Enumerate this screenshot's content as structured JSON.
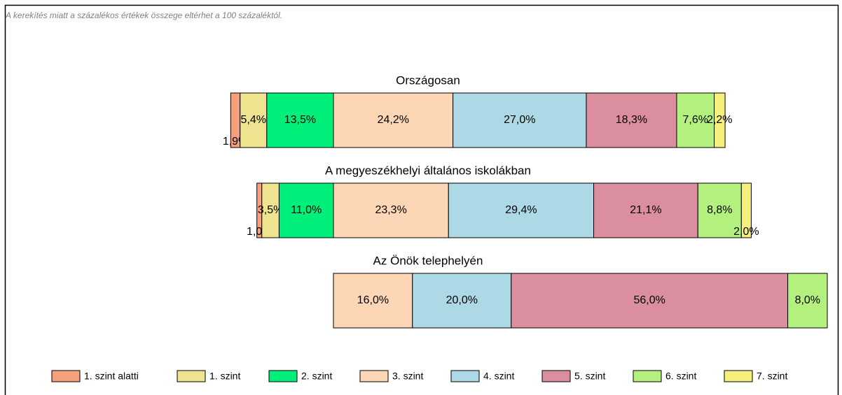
{
  "chart_data": {
    "type": "bar",
    "note": "A kerekítés miatt a  százalékos értékek összege eltérhet a 100 százaléktól.",
    "categories": [
      "Országosan",
      "A megyeszékhelyi általános iskolákban",
      "Az Önök telephelyén"
    ],
    "series": [
      {
        "name": "1. szint alatti",
        "color": "#f7a07e",
        "values": [
          1.9,
          1.0,
          null
        ],
        "value_labels": [
          "1,9%",
          "1,0%",
          null
        ]
      },
      {
        "name": "1. szint",
        "color": "#eee38f",
        "values": [
          5.4,
          3.5,
          null
        ],
        "value_labels": [
          "5,4%",
          "3,5%",
          null
        ]
      },
      {
        "name": "2. szint",
        "color": "#00ee7a",
        "values": [
          13.5,
          11.0,
          null
        ],
        "value_labels": [
          "13,5%",
          "11,0%",
          null
        ]
      },
      {
        "name": "3. szint",
        "color": "#fdd6b5",
        "values": [
          24.2,
          23.3,
          16.0
        ],
        "value_labels": [
          "24,2%",
          "23,3%",
          "16,0%"
        ]
      },
      {
        "name": "4. szint",
        "color": "#add8e6",
        "values": [
          27.0,
          29.4,
          20.0
        ],
        "value_labels": [
          "27,0%",
          "29,4%",
          "20,0%"
        ]
      },
      {
        "name": "5. szint",
        "color": "#db8e9e",
        "values": [
          18.3,
          21.1,
          56.0
        ],
        "value_labels": [
          "18,3%",
          "21,1%",
          "56,0%"
        ]
      },
      {
        "name": "6. szint",
        "color": "#b4f07e",
        "values": [
          7.6,
          8.8,
          8.0
        ],
        "value_labels": [
          "7,6%",
          "8,8%",
          "8,0%"
        ]
      },
      {
        "name": "7. szint",
        "color": "#f5f07c",
        "values": [
          2.2,
          2.0,
          null
        ],
        "value_labels": [
          "2,2%",
          "2,0%",
          null
        ]
      }
    ]
  }
}
